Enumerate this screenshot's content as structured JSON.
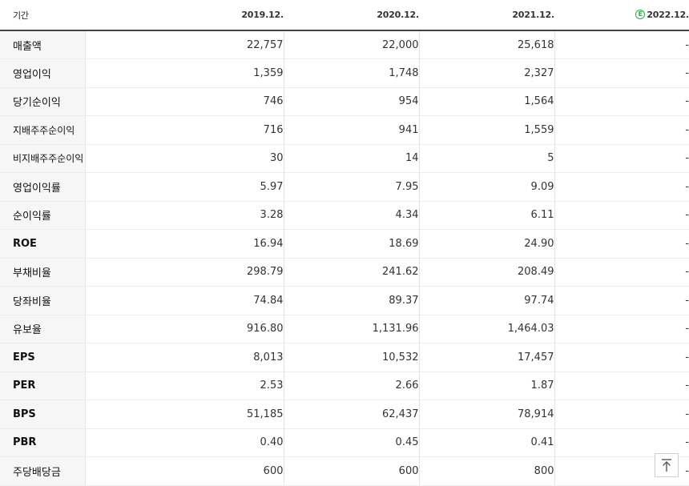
{
  "header": {
    "period_label": "기간",
    "columns": [
      "2019.12.",
      "2020.12.",
      "2021.12.",
      "2022.12."
    ],
    "estimate_badge": "E"
  },
  "rows": [
    {
      "label": "매출액",
      "values": [
        "22,757",
        "22,000",
        "25,618",
        "-"
      ]
    },
    {
      "label": "영업이익",
      "values": [
        "1,359",
        "1,748",
        "2,327",
        "-"
      ]
    },
    {
      "label": "당기순이익",
      "values": [
        "746",
        "954",
        "1,564",
        "-"
      ]
    },
    {
      "label": "지배주주순이익",
      "values": [
        "716",
        "941",
        "1,559",
        "-"
      ]
    },
    {
      "label": "비지배주주순이익",
      "values": [
        "30",
        "14",
        "5",
        "-"
      ]
    },
    {
      "label": "영업이익률",
      "values": [
        "5.97",
        "7.95",
        "9.09",
        "-"
      ]
    },
    {
      "label": "순이익률",
      "values": [
        "3.28",
        "4.34",
        "6.11",
        "-"
      ]
    },
    {
      "label": "ROE",
      "values": [
        "16.94",
        "18.69",
        "24.90",
        "-"
      ]
    },
    {
      "label": "부채비율",
      "values": [
        "298.79",
        "241.62",
        "208.49",
        "-"
      ]
    },
    {
      "label": "당좌비율",
      "values": [
        "74.84",
        "89.37",
        "97.74",
        "-"
      ]
    },
    {
      "label": "유보율",
      "values": [
        "916.80",
        "1,131.96",
        "1,464.03",
        "-"
      ]
    },
    {
      "label": "EPS",
      "values": [
        "8,013",
        "10,532",
        "17,457",
        "-"
      ]
    },
    {
      "label": "PER",
      "values": [
        "2.53",
        "2.66",
        "1.87",
        "-"
      ]
    },
    {
      "label": "BPS",
      "values": [
        "51,185",
        "62,437",
        "78,914",
        "-"
      ]
    },
    {
      "label": "PBR",
      "values": [
        "0.40",
        "0.45",
        "0.41",
        "-"
      ]
    },
    {
      "label": "주당배당금",
      "values": [
        "600",
        "600",
        "800",
        "-"
      ]
    }
  ],
  "controls": {
    "scroll_top_icon": "arrow-up-to-top-icon"
  },
  "colors": {
    "estimate_badge": "#2aa84a",
    "header_rule": "#444444",
    "label_background": "#f6f6f6"
  }
}
